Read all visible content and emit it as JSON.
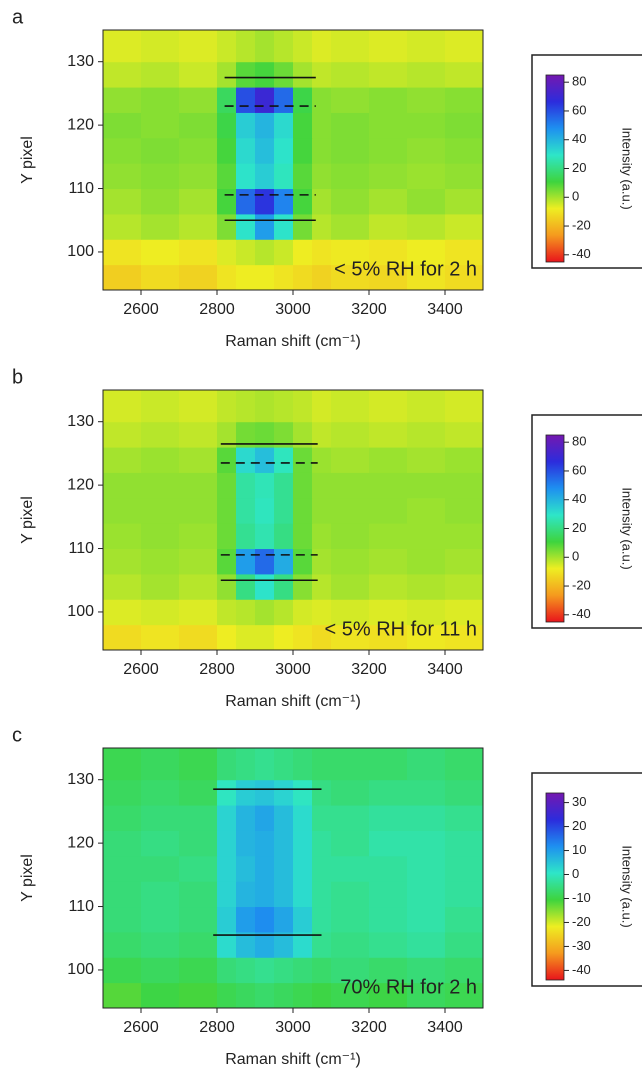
{
  "chart_data": [
    {
      "type": "heatmap",
      "panel_label": "a",
      "annotation": "< 5% RH for 2 h",
      "xlabel": "Raman shift (cm⁻¹)",
      "ylabel": "Y pixel",
      "colorbar_label": "Intensity (a.u.)",
      "xlim": [
        2500,
        3500
      ],
      "ylim": [
        94,
        135
      ],
      "xticks": [
        2600,
        2800,
        3000,
        3200,
        3400
      ],
      "yticks": [
        100,
        110,
        120,
        130
      ],
      "x_edges": [
        2500,
        2600,
        2700,
        2800,
        2850,
        2900,
        2950,
        3000,
        3050,
        3100,
        3200,
        3300,
        3400,
        3500
      ],
      "y_edges": [
        94,
        98,
        102,
        106,
        110,
        114,
        118,
        122,
        126,
        130,
        135
      ],
      "z": [
        [
          -15,
          -12,
          -14,
          -10,
          -8,
          -8,
          -10,
          -12,
          -14,
          -12,
          -13,
          -10,
          -12
        ],
        [
          -10,
          -8,
          -10,
          -6,
          -4,
          -2,
          -4,
          -8,
          -10,
          -9,
          -10,
          -8,
          -10
        ],
        [
          -2,
          0,
          -2,
          4,
          30,
          45,
          30,
          5,
          -2,
          0,
          -3,
          -2,
          -4
        ],
        [
          0,
          2,
          0,
          10,
          55,
          65,
          50,
          10,
          0,
          2,
          0,
          2,
          0
        ],
        [
          2,
          3,
          2,
          8,
          30,
          35,
          28,
          8,
          2,
          3,
          2,
          1,
          2
        ],
        [
          3,
          4,
          3,
          10,
          32,
          38,
          30,
          10,
          3,
          4,
          3,
          2,
          3
        ],
        [
          4,
          3,
          4,
          12,
          35,
          40,
          32,
          10,
          3,
          4,
          3,
          3,
          4
        ],
        [
          2,
          3,
          2,
          15,
          60,
          70,
          55,
          12,
          3,
          2,
          3,
          2,
          3
        ],
        [
          -3,
          -2,
          -4,
          0,
          8,
          10,
          6,
          0,
          -3,
          -2,
          -3,
          -2,
          -3
        ],
        [
          -6,
          -5,
          -6,
          -4,
          -2,
          0,
          -2,
          -4,
          -6,
          -5,
          -6,
          -5,
          -6
        ]
      ],
      "clim": [
        -45,
        85
      ],
      "cticks": [
        -40,
        -20,
        0,
        20,
        40,
        60,
        80
      ],
      "colorscale": [
        "#e8141c",
        "#f59a1e",
        "#eeee22",
        "#3ed43e",
        "#2ee6c8",
        "#1e90f0",
        "#2c2cdc",
        "#7418b0"
      ],
      "lines": [
        {
          "y": 127.5,
          "x": [
            2820,
            3060
          ],
          "style": "solid"
        },
        {
          "y": 123,
          "x": [
            2820,
            3060
          ],
          "style": "dashed"
        },
        {
          "y": 109,
          "x": [
            2820,
            3060
          ],
          "style": "dashed"
        },
        {
          "y": 105,
          "x": [
            2820,
            3060
          ],
          "style": "solid"
        }
      ]
    },
    {
      "type": "heatmap",
      "panel_label": "b",
      "annotation": "< 5% RH for 11 h",
      "xlabel": "Raman shift (cm⁻¹)",
      "ylabel": "Y pixel",
      "colorbar_label": "Intensity (a.u.)",
      "xlim": [
        2500,
        3500
      ],
      "ylim": [
        94,
        135
      ],
      "xticks": [
        2600,
        2800,
        3000,
        3200,
        3400
      ],
      "yticks": [
        100,
        110,
        120,
        130
      ],
      "x_edges": [
        2500,
        2600,
        2700,
        2800,
        2850,
        2900,
        2950,
        3000,
        3050,
        3100,
        3200,
        3300,
        3400,
        3500
      ],
      "y_edges": [
        94,
        98,
        102,
        106,
        110,
        114,
        118,
        122,
        126,
        130,
        135
      ],
      "z": [
        [
          -12,
          -10,
          -12,
          -8,
          -6,
          -6,
          -8,
          -10,
          -12,
          -10,
          -11,
          -9,
          -10
        ],
        [
          -6,
          -5,
          -6,
          -3,
          -2,
          0,
          -2,
          -5,
          -6,
          -5,
          -6,
          -5,
          -6
        ],
        [
          -2,
          0,
          -2,
          2,
          20,
          30,
          20,
          3,
          -2,
          0,
          -2,
          -1,
          -2
        ],
        [
          0,
          1,
          0,
          8,
          45,
          55,
          42,
          8,
          0,
          1,
          0,
          1,
          0
        ],
        [
          1,
          2,
          1,
          6,
          22,
          26,
          20,
          6,
          1,
          2,
          1,
          1,
          1
        ],
        [
          2,
          2,
          2,
          6,
          24,
          28,
          22,
          6,
          2,
          2,
          2,
          1,
          2
        ],
        [
          2,
          2,
          2,
          6,
          24,
          27,
          22,
          6,
          2,
          2,
          2,
          2,
          2
        ],
        [
          0,
          1,
          0,
          8,
          32,
          38,
          28,
          6,
          1,
          0,
          1,
          0,
          1
        ],
        [
          -3,
          -2,
          -3,
          0,
          5,
          6,
          4,
          0,
          -3,
          -2,
          -3,
          -2,
          -3
        ],
        [
          -5,
          -4,
          -5,
          -3,
          -2,
          -1,
          -2,
          -3,
          -5,
          -4,
          -5,
          -4,
          -5
        ]
      ],
      "clim": [
        -45,
        85
      ],
      "cticks": [
        -40,
        -20,
        0,
        20,
        40,
        60,
        80
      ],
      "colorscale": [
        "#e8141c",
        "#f59a1e",
        "#eeee22",
        "#3ed43e",
        "#2ee6c8",
        "#1e90f0",
        "#2c2cdc",
        "#7418b0"
      ],
      "lines": [
        {
          "y": 126.5,
          "x": [
            2810,
            3065
          ],
          "style": "solid"
        },
        {
          "y": 123.5,
          "x": [
            2810,
            3065
          ],
          "style": "dashed"
        },
        {
          "y": 109,
          "x": [
            2810,
            3065
          ],
          "style": "dashed"
        },
        {
          "y": 105,
          "x": [
            2810,
            3065
          ],
          "style": "solid"
        }
      ]
    },
    {
      "type": "heatmap",
      "panel_label": "c",
      "annotation": "70% RH for 2 h",
      "xlabel": "Raman shift (cm⁻¹)",
      "ylabel": "Y pixel",
      "colorbar_label": "Intensity (a.u.)",
      "xlim": [
        2500,
        3500
      ],
      "ylim": [
        94,
        135
      ],
      "xticks": [
        2600,
        2800,
        3000,
        3200,
        3400
      ],
      "yticks": [
        100,
        110,
        120,
        130
      ],
      "x_edges": [
        2500,
        2600,
        2700,
        2800,
        2850,
        2900,
        2950,
        3000,
        3050,
        3100,
        3200,
        3300,
        3400,
        3500
      ],
      "y_edges": [
        94,
        98,
        102,
        106,
        110,
        114,
        118,
        122,
        126,
        130,
        135
      ],
      "z": [
        [
          -12,
          -10,
          -11,
          -9,
          -8,
          -7,
          -8,
          -9,
          -10,
          -9,
          -10,
          -8,
          -9
        ],
        [
          -9,
          -8,
          -9,
          -6,
          -5,
          -4,
          -5,
          -6,
          -7,
          -6,
          -7,
          -6,
          -7
        ],
        [
          -7,
          -6,
          -7,
          2,
          6,
          8,
          6,
          2,
          -4,
          -5,
          -4,
          -3,
          -5
        ],
        [
          -6,
          -5,
          -6,
          4,
          10,
          12,
          9,
          4,
          -3,
          -4,
          -3,
          -2,
          -4
        ],
        [
          -6,
          -5,
          -6,
          3,
          7,
          8,
          6,
          2,
          -3,
          -4,
          -3,
          -2,
          -3
        ],
        [
          -6,
          -6,
          -5,
          3,
          6,
          8,
          6,
          2,
          -3,
          -3,
          -3,
          -2,
          -3
        ],
        [
          -6,
          -5,
          -6,
          3,
          7,
          8,
          6,
          2,
          -3,
          -4,
          -2,
          -2,
          -3
        ],
        [
          -7,
          -6,
          -6,
          3,
          7,
          9,
          6,
          2,
          -4,
          -4,
          -3,
          -3,
          -4
        ],
        [
          -8,
          -7,
          -8,
          0,
          4,
          5,
          3,
          0,
          -5,
          -6,
          -5,
          -5,
          -6
        ],
        [
          -9,
          -8,
          -9,
          -6,
          -5,
          -4,
          -5,
          -6,
          -7,
          -7,
          -7,
          -6,
          -7
        ]
      ],
      "clim": [
        -44,
        34
      ],
      "cticks": [
        -40,
        -30,
        -20,
        -10,
        0,
        10,
        20,
        30
      ],
      "colorscale": [
        "#e8141c",
        "#f59a1e",
        "#eeee22",
        "#3ed43e",
        "#2ee6c8",
        "#1e90f0",
        "#2c2cdc",
        "#7418b0"
      ],
      "lines": [
        {
          "y": 128.5,
          "x": [
            2790,
            3075
          ],
          "style": "solid"
        },
        {
          "y": 105.5,
          "x": [
            2790,
            3075
          ],
          "style": "solid"
        }
      ]
    }
  ]
}
